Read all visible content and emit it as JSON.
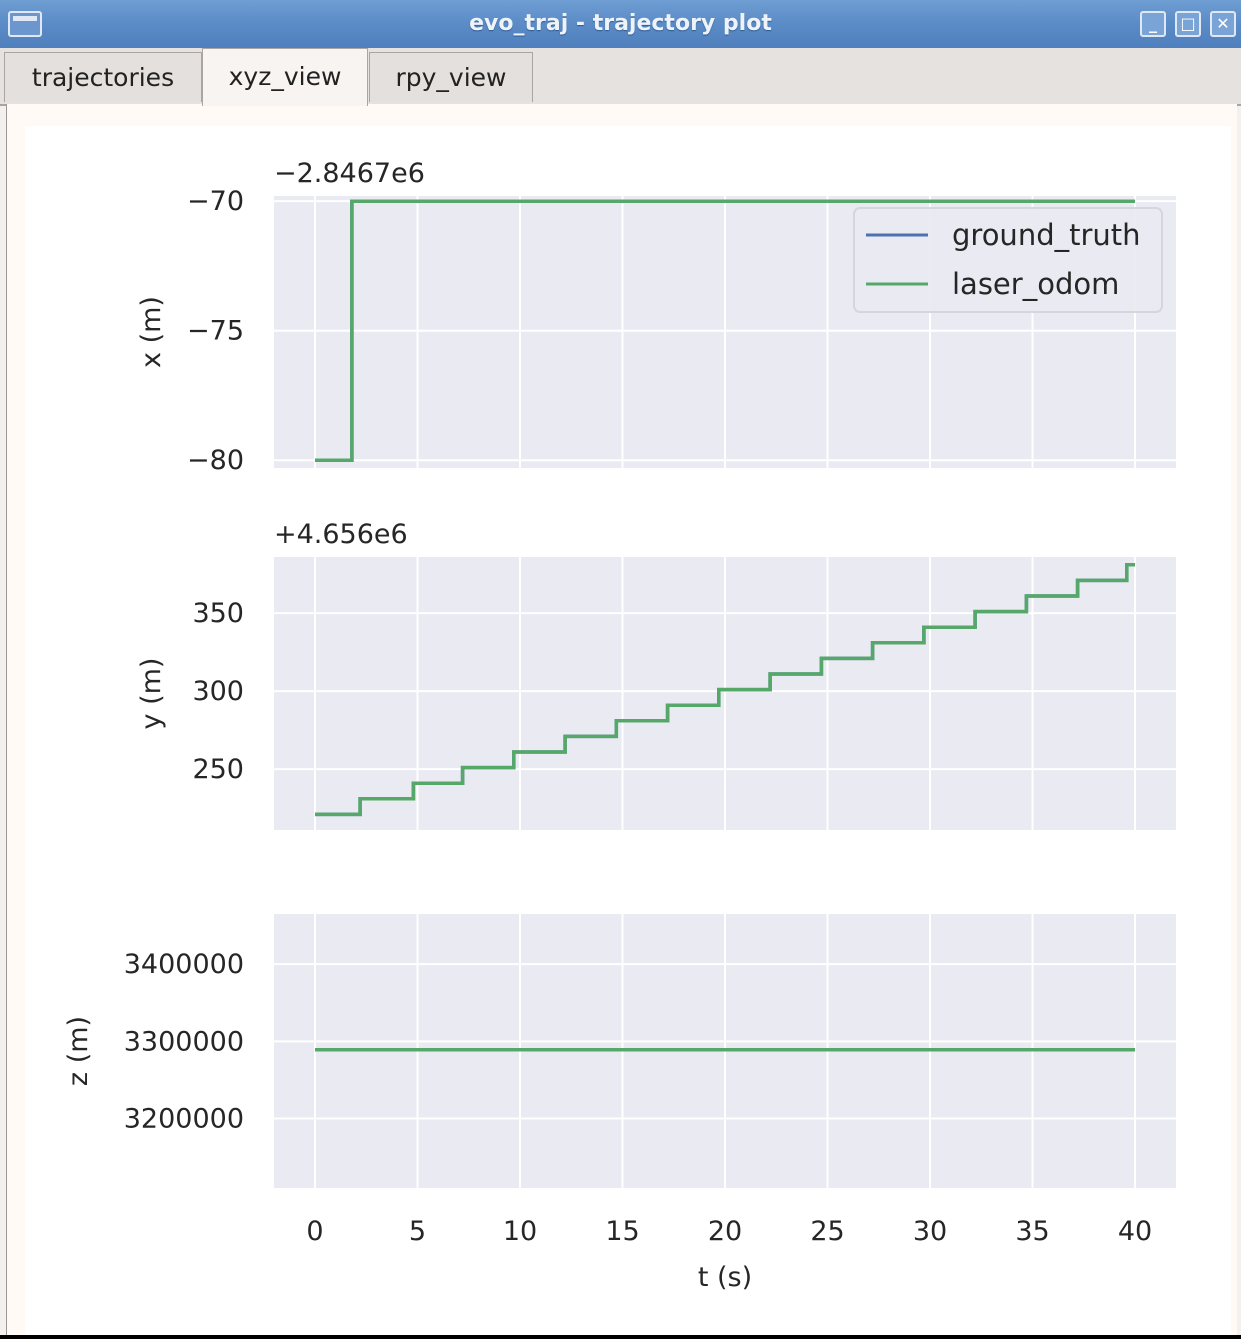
{
  "window": {
    "title": "evo_traj - trajectory plot",
    "buttons": {
      "minimize": "_",
      "maximize": "□",
      "close": "✕"
    }
  },
  "tabs": [
    {
      "label": "trajectories",
      "active": false
    },
    {
      "label": "xyz_view",
      "active": true
    },
    {
      "label": "rpy_view",
      "active": false
    }
  ],
  "colors": {
    "plot_bg": "#eaeaf2",
    "grid": "#ffffff",
    "ground_truth": "#4c72b0",
    "laser_odom": "#55a868"
  },
  "legend": {
    "location": "upper right",
    "entries": [
      "ground_truth",
      "laser_odom"
    ]
  },
  "chart_data": [
    {
      "type": "line",
      "ylabel": "x (m)",
      "offset_label": "−2.8467e6",
      "xlim": [
        -2,
        42
      ],
      "ylim": [
        -80.3,
        -69.8
      ],
      "yticks": [
        -80,
        -75,
        -70
      ],
      "ytick_labels": [
        "−80",
        "−75",
        "−70"
      ],
      "grid": true,
      "series": [
        {
          "name": "ground_truth",
          "x": [
            0,
            1.8,
            1.8,
            40
          ],
          "y": [
            -80,
            -80,
            -70,
            -70
          ]
        },
        {
          "name": "laser_odom",
          "x": [
            0,
            1.8,
            1.8,
            40
          ],
          "y": [
            -80,
            -80,
            -70,
            -70
          ]
        }
      ]
    },
    {
      "type": "line",
      "ylabel": "y (m)",
      "offset_label": "+4.656e6",
      "xlim": [
        -2,
        42
      ],
      "ylim": [
        211,
        386
      ],
      "yticks": [
        250,
        300,
        350
      ],
      "ytick_labels": [
        "250",
        "300",
        "350"
      ],
      "grid": true,
      "series": [
        {
          "name": "ground_truth",
          "x": [
            0,
            2.2,
            2.2,
            4.8,
            4.8,
            7.2,
            7.2,
            9.7,
            9.7,
            12.2,
            12.2,
            14.7,
            14.7,
            17.2,
            17.2,
            19.7,
            19.7,
            22.2,
            22.2,
            24.7,
            24.7,
            27.2,
            27.2,
            29.7,
            29.7,
            32.2,
            32.2,
            34.7,
            34.7,
            37.2,
            37.2,
            39.6,
            39.6,
            40
          ],
          "y": [
            221,
            221,
            231,
            231,
            241,
            241,
            251,
            251,
            261,
            261,
            271,
            271,
            281,
            281,
            291,
            291,
            301,
            301,
            311,
            311,
            321,
            321,
            331,
            331,
            341,
            341,
            351,
            351,
            361,
            361,
            371,
            371,
            381,
            381
          ]
        },
        {
          "name": "laser_odom",
          "x": [
            0,
            2.2,
            2.2,
            4.8,
            4.8,
            7.2,
            7.2,
            9.7,
            9.7,
            12.2,
            12.2,
            14.7,
            14.7,
            17.2,
            17.2,
            19.7,
            19.7,
            22.2,
            22.2,
            24.7,
            24.7,
            27.2,
            27.2,
            29.7,
            29.7,
            32.2,
            32.2,
            34.7,
            34.7,
            37.2,
            37.2,
            39.6,
            39.6,
            40
          ],
          "y": [
            221,
            221,
            231,
            231,
            241,
            241,
            251,
            251,
            261,
            261,
            271,
            271,
            281,
            281,
            291,
            291,
            301,
            301,
            311,
            311,
            321,
            321,
            331,
            331,
            341,
            341,
            351,
            351,
            361,
            361,
            371,
            371,
            381,
            381
          ]
        }
      ]
    },
    {
      "type": "line",
      "ylabel": "z (m)",
      "xlabel": "t (s)",
      "xlim": [
        -2,
        42
      ],
      "ylim": [
        3110000,
        3465000
      ],
      "yticks": [
        3200000,
        3300000,
        3400000
      ],
      "ytick_labels": [
        "3200000",
        "3300000",
        "3400000"
      ],
      "xticks": [
        0,
        5,
        10,
        15,
        20,
        25,
        30,
        35,
        40
      ],
      "xtick_labels": [
        "0",
        "5",
        "10",
        "15",
        "20",
        "25",
        "30",
        "35",
        "40"
      ],
      "grid": true,
      "series": [
        {
          "name": "ground_truth",
          "x": [
            0,
            40
          ],
          "y": [
            3289000,
            3289000
          ]
        },
        {
          "name": "laser_odom",
          "x": [
            0,
            40
          ],
          "y": [
            3289000,
            3289000
          ]
        }
      ]
    }
  ]
}
